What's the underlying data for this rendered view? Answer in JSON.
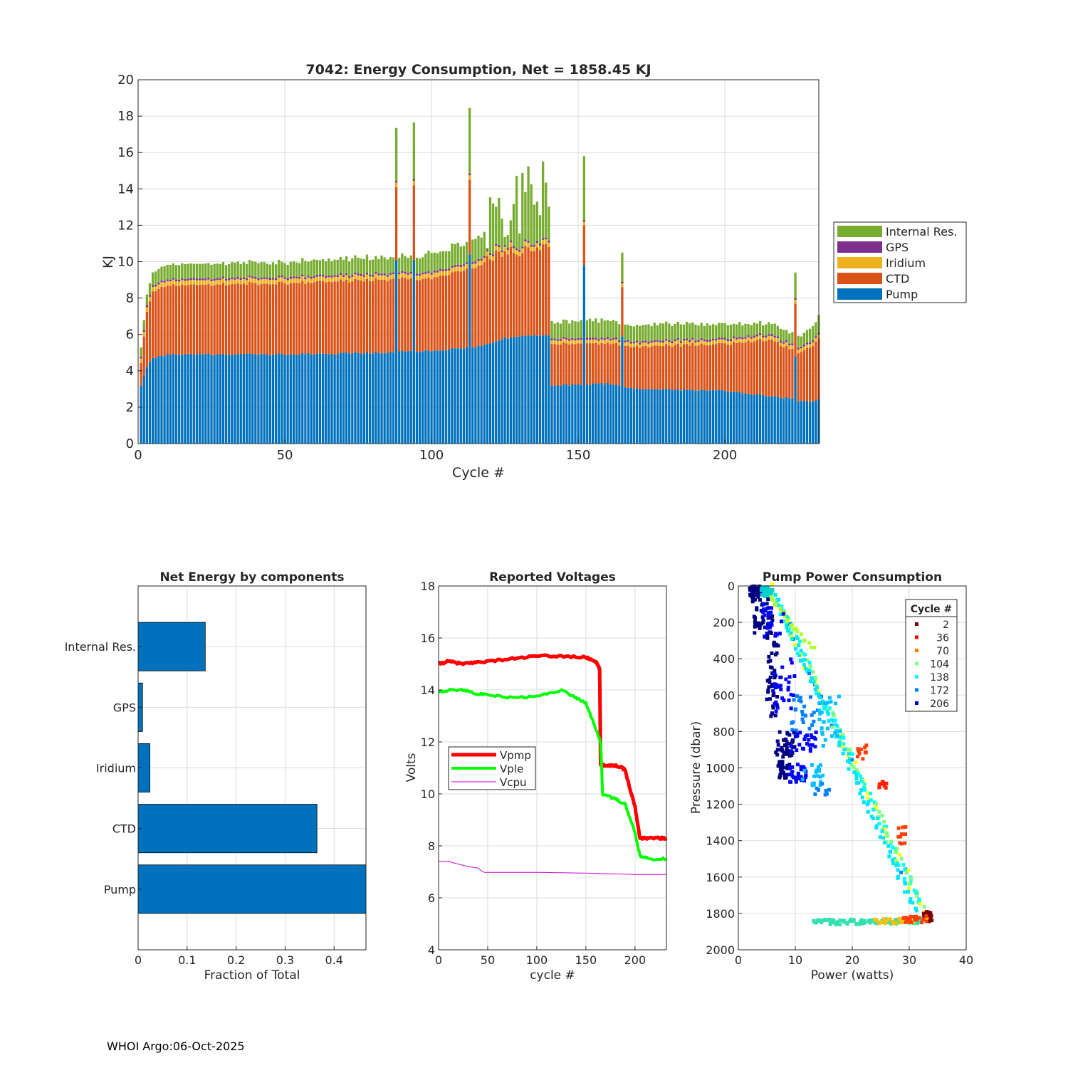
{
  "footer": "WHOI Argo:06-Oct-2025",
  "colors": {
    "pump": "#0072BD",
    "ctd": "#D95319",
    "iridium": "#EDB120",
    "gps": "#7E2F8E",
    "internal": "#77AC30",
    "vpmp": "#FF0000",
    "vple": "#00FF00",
    "vcpu": "#CC00CC"
  },
  "chart_data": [
    {
      "type": "bar",
      "stacked": true,
      "title": "7042: Energy Consumption,  Net = 1858.45 KJ",
      "xlabel": "Cycle #",
      "ylabel": "KJ",
      "xlim": [
        0,
        232
      ],
      "ylim": [
        0,
        20
      ],
      "xticks": [
        0,
        50,
        100,
        150,
        200
      ],
      "yticks": [
        0,
        2,
        4,
        6,
        8,
        10,
        12,
        14,
        16,
        18,
        20
      ],
      "grid": true,
      "legend_position": "outside-right",
      "legend": [
        "Internal Res.",
        "GPS",
        "Iridium",
        "CTD",
        "Pump"
      ],
      "num_cycles": 232,
      "component_profiles": {
        "pump": [
          [
            1,
            3.2
          ],
          [
            3,
            4.2
          ],
          [
            5,
            4.7
          ],
          [
            10,
            4.9
          ],
          [
            50,
            4.9
          ],
          [
            80,
            5.0
          ],
          [
            100,
            5.1
          ],
          [
            115,
            5.3
          ],
          [
            125,
            5.8
          ],
          [
            140,
            6.0
          ],
          [
            141,
            3.2
          ],
          [
            160,
            3.3
          ],
          [
            170,
            3.0
          ],
          [
            200,
            2.9
          ],
          [
            215,
            2.6
          ],
          [
            222,
            2.5
          ],
          [
            225,
            2.3
          ],
          [
            232,
            2.4
          ]
        ],
        "ctd": [
          [
            1,
            1.3
          ],
          [
            3,
            3.0
          ],
          [
            5,
            3.7
          ],
          [
            10,
            3.8
          ],
          [
            50,
            3.9
          ],
          [
            80,
            4.0
          ],
          [
            100,
            4.0
          ],
          [
            115,
            4.4
          ],
          [
            125,
            4.8
          ],
          [
            133,
            4.7
          ],
          [
            140,
            4.9
          ],
          [
            141,
            2.3
          ],
          [
            160,
            2.2
          ],
          [
            170,
            2.3
          ],
          [
            200,
            2.6
          ],
          [
            215,
            3.1
          ],
          [
            225,
            2.6
          ],
          [
            232,
            3.3
          ]
        ],
        "iridium": [
          [
            1,
            0.25
          ],
          [
            140,
            0.25
          ],
          [
            141,
            0.2
          ],
          [
            232,
            0.2
          ]
        ],
        "gps": [
          [
            1,
            0.1
          ],
          [
            232,
            0.1
          ]
        ],
        "internal": [
          [
            1,
            0.5
          ],
          [
            5,
            0.7
          ],
          [
            10,
            0.8
          ],
          [
            50,
            0.8
          ],
          [
            80,
            0.9
          ],
          [
            100,
            1.0
          ],
          [
            110,
            1.1
          ],
          [
            118,
            1.3
          ],
          [
            125,
            2.1
          ],
          [
            130,
            2.5
          ],
          [
            140,
            3.3
          ],
          [
            141,
            0.9
          ],
          [
            160,
            1.0
          ],
          [
            170,
            0.9
          ],
          [
            200,
            0.8
          ],
          [
            215,
            0.6
          ],
          [
            225,
            0.6
          ],
          [
            232,
            0.9
          ]
        ]
      },
      "variability": [
        [
          0,
          0
        ],
        [
          118,
          0.1
        ],
        [
          119,
          1.0
        ],
        [
          140,
          1.0
        ],
        [
          141,
          0.05
        ],
        [
          232,
          0.05
        ]
      ],
      "spikes": [
        {
          "cycle": 88,
          "pump": 10.1,
          "ctd": 4.0,
          "iridium": 0.25,
          "gps": 0.1,
          "internal": 2.9
        },
        {
          "cycle": 94,
          "pump": 10.1,
          "ctd": 4.1,
          "iridium": 0.25,
          "gps": 0.1,
          "internal": 3.1
        },
        {
          "cycle": 113,
          "pump": 10.4,
          "ctd": 4.1,
          "iridium": 0.25,
          "gps": 0.1,
          "internal": 3.6
        },
        {
          "cycle": 152,
          "pump": 9.8,
          "ctd": 2.2,
          "iridium": 0.2,
          "gps": 0.1,
          "internal": 3.5
        },
        {
          "cycle": 165,
          "pump": 5.9,
          "ctd": 2.7,
          "iridium": 0.2,
          "gps": 0.1,
          "internal": 1.6
        },
        {
          "cycle": 224,
          "pump": 4.8,
          "ctd": 2.9,
          "iridium": 0.2,
          "gps": 0.1,
          "internal": 1.4
        }
      ]
    },
    {
      "type": "bar",
      "orientation": "horizontal",
      "title": "Net Energy by components",
      "xlabel": "Fraction of Total",
      "categories": [
        "Internal Res.",
        "GPS",
        "Iridium",
        "CTD",
        "Pump"
      ],
      "values": [
        0.137,
        0.009,
        0.024,
        0.365,
        0.465
      ],
      "xlim": [
        0,
        0.465
      ],
      "xticks": [
        0,
        0.1,
        0.2,
        0.3,
        0.4
      ],
      "xticklabels": [
        "0",
        "0.1",
        "0.2",
        "0.3",
        "0.4"
      ],
      "grid": true
    },
    {
      "type": "line",
      "title": "Reported Voltages",
      "xlabel": "cycle #",
      "ylabel": "Volts",
      "xlim": [
        0,
        232
      ],
      "ylim": [
        4,
        18
      ],
      "xticks": [
        0,
        50,
        100,
        150,
        200
      ],
      "yticks": [
        4,
        6,
        8,
        10,
        12,
        14,
        16,
        18
      ],
      "grid": true,
      "legend_position": "middle-left",
      "series": [
        {
          "name": "Vpmp",
          "x": [
            0,
            10,
            25,
            35,
            50,
            75,
            100,
            125,
            150,
            160,
            164,
            165,
            175,
            186,
            190,
            200,
            205,
            210,
            220,
            232
          ],
          "y": [
            15.0,
            15.1,
            15.0,
            15.05,
            15.1,
            15.2,
            15.3,
            15.3,
            15.25,
            15.1,
            14.8,
            11.1,
            11.1,
            11.05,
            10.9,
            9.5,
            8.3,
            8.3,
            8.3,
            8.3
          ]
        },
        {
          "name": "Vple",
          "x": [
            0,
            10,
            25,
            40,
            50,
            75,
            100,
            125,
            140,
            150,
            160,
            165,
            167,
            180,
            190,
            200,
            205,
            215,
            232
          ],
          "y": [
            13.9,
            14.0,
            14.0,
            13.85,
            13.8,
            13.7,
            13.75,
            14.0,
            13.7,
            13.5,
            12.5,
            12.0,
            10.0,
            9.8,
            9.6,
            8.5,
            7.6,
            7.5,
            7.5
          ]
        },
        {
          "name": "Vcpu",
          "x": [
            0,
            10,
            20,
            30,
            40,
            45,
            47,
            100,
            150,
            200,
            232
          ],
          "y": [
            7.4,
            7.4,
            7.3,
            7.2,
            7.15,
            7.0,
            6.98,
            6.98,
            6.95,
            6.9,
            6.9
          ]
        }
      ]
    },
    {
      "type": "scatter",
      "title": "Pump Power Consumption",
      "xlabel": "Power (watts)",
      "ylabel": "Pressure (dbar)",
      "xlim": [
        0,
        40
      ],
      "ylim": [
        0,
        2000
      ],
      "y_reversed": true,
      "xticks": [
        0,
        10,
        20,
        30,
        40
      ],
      "yticks": [
        0,
        200,
        400,
        600,
        800,
        1000,
        1200,
        1400,
        1600,
        1800,
        2000
      ],
      "grid": true,
      "legend_title": "Cycle #",
      "legend_position": "top-right",
      "legend": [
        {
          "label": "2",
          "color": "#800000"
        },
        {
          "label": "36",
          "color": "#FF0000"
        },
        {
          "label": "70",
          "color": "#FF8000"
        },
        {
          "label": "104",
          "color": "#80FF80"
        },
        {
          "label": "138",
          "color": "#00FFFF"
        },
        {
          "label": "172",
          "color": "#0080FF"
        },
        {
          "label": "206",
          "color": "#0000CD"
        }
      ],
      "clusters": [
        {
          "x": [
            2,
            4
          ],
          "y": [
            0,
            60
          ],
          "color": "#000080",
          "n": 60
        },
        {
          "x": [
            4,
            6
          ],
          "y": [
            0,
            60
          ],
          "color": "#00CED1",
          "n": 25
        },
        {
          "x": [
            2.5,
            6
          ],
          "y": [
            60,
            260
          ],
          "color": "#000080",
          "n": 40
        },
        {
          "x": [
            4,
            8
          ],
          "y": [
            100,
            280
          ],
          "color": "#0000FF",
          "n": 25
        },
        {
          "x": [
            5,
            7
          ],
          "y": [
            250,
            720
          ],
          "color": "#000080",
          "n": 45
        },
        {
          "x": [
            6,
            10
          ],
          "y": [
            400,
            700
          ],
          "color": "#0000FF",
          "n": 30
        },
        {
          "x": [
            9,
            14
          ],
          "y": [
            600,
            820
          ],
          "color": "#0080FF",
          "n": 25
        },
        {
          "x": [
            14,
            18
          ],
          "y": [
            600,
            880
          ],
          "color": "#00BFFF",
          "n": 25
        },
        {
          "x": [
            6.5,
            10
          ],
          "y": [
            800,
            940
          ],
          "color": "#000080",
          "n": 40
        },
        {
          "x": [
            9,
            14
          ],
          "y": [
            800,
            920
          ],
          "color": "#0000FF",
          "n": 25
        },
        {
          "x": [
            7,
            9
          ],
          "y": [
            960,
            1060
          ],
          "color": "#000080",
          "n": 30
        },
        {
          "x": [
            9,
            12
          ],
          "y": [
            980,
            1080
          ],
          "color": "#0000FF",
          "n": 30
        },
        {
          "x": [
            11,
            15
          ],
          "y": [
            980,
            1100
          ],
          "color": "#00BFFF",
          "n": 20
        },
        {
          "x": [
            13,
            16
          ],
          "y": [
            1080,
            1160
          ],
          "color": "#0080FF",
          "n": 8
        },
        {
          "x": [
            20.5,
            22.5
          ],
          "y": [
            870,
            960
          ],
          "color": "#FF4000",
          "n": 12
        },
        {
          "x": [
            24.5,
            26
          ],
          "y": [
            1070,
            1120
          ],
          "color": "#FF2000",
          "n": 10
        },
        {
          "x": [
            28,
            29.5
          ],
          "y": [
            1320,
            1420
          ],
          "color": "#FF4000",
          "n": 10
        },
        {
          "x": [
            32.5,
            34.2
          ],
          "y": [
            1790,
            1850
          ],
          "color": "#800000",
          "n": 15
        },
        {
          "x": [
            29,
            33
          ],
          "y": [
            1815,
            1850
          ],
          "color": "#FF4000",
          "n": 20
        }
      ],
      "lines": [
        {
          "from": [
            5.5,
            0
          ],
          "to": [
            33,
            1820
          ],
          "color": "#2EE8A0",
          "n": 180,
          "jitter": 0.6
        },
        {
          "from": [
            6,
            20
          ],
          "to": [
            31,
            1790
          ],
          "color": "#00E5FF",
          "n": 90,
          "jitter": 0.5
        },
        {
          "from": [
            4,
            0
          ],
          "to": [
            13,
            350
          ],
          "color": "#B0FF30",
          "n": 25,
          "jitter": 0.4
        },
        {
          "from": [
            13,
            1850
          ],
          "to": [
            32,
            1840
          ],
          "color": "#33E0B0",
          "n": 80,
          "jitter": 0.25
        },
        {
          "from": [
            24,
            1845
          ],
          "to": [
            31,
            1835
          ],
          "color": "#FFC000",
          "n": 20,
          "jitter": 0.2
        }
      ]
    }
  ]
}
